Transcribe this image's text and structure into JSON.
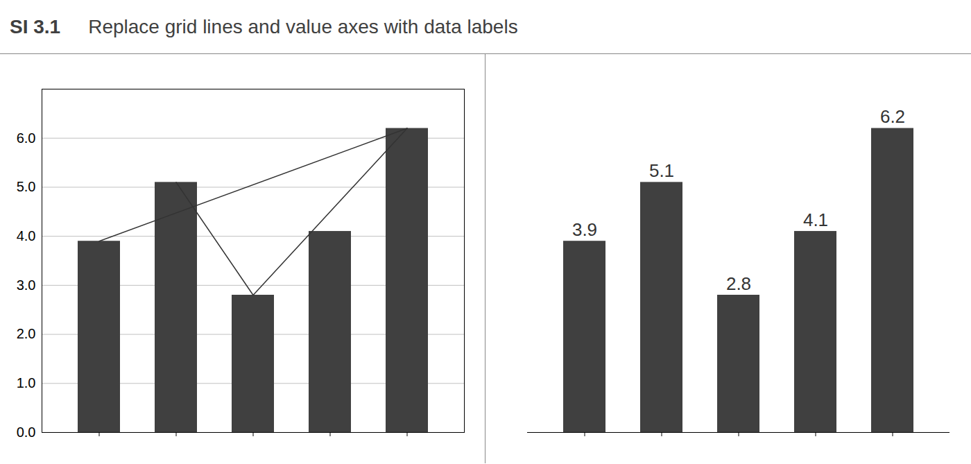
{
  "chart_data": [
    {
      "type": "bar",
      "title": "SI 3.1",
      "subtitle": "Replace grid lines and value axes with data labels",
      "categories": [
        null,
        null,
        null,
        null,
        null
      ],
      "series": [
        {
          "type": "bar",
          "color": "#404040",
          "values": [
            3.9,
            5.1,
            2.8,
            4.1,
            6.2
          ]
        },
        {
          "type": "line",
          "color": "#333333",
          "x": [
            0,
            4
          ],
          "values": [
            3.9,
            6.2
          ]
        },
        {
          "type": "line",
          "color": "#333333",
          "x": [
            1,
            2,
            4
          ],
          "values": [
            5.1,
            2.8,
            6.2
          ]
        }
      ],
      "ylim": [
        0,
        7.0
      ],
      "yticks": [
        0,
        1,
        2,
        3,
        4,
        5,
        6
      ],
      "grid": true,
      "tick_labels": "y"
    },
    {
      "type": "bar",
      "categories": [
        null,
        null,
        null,
        null,
        null
      ],
      "values": [
        3.9,
        5.1,
        2.8,
        4.1,
        6.2
      ],
      "color": "#404040",
      "ylim": [
        0,
        7.0
      ],
      "grid": false,
      "data_labels": true,
      "tick_labels": false
    }
  ]
}
